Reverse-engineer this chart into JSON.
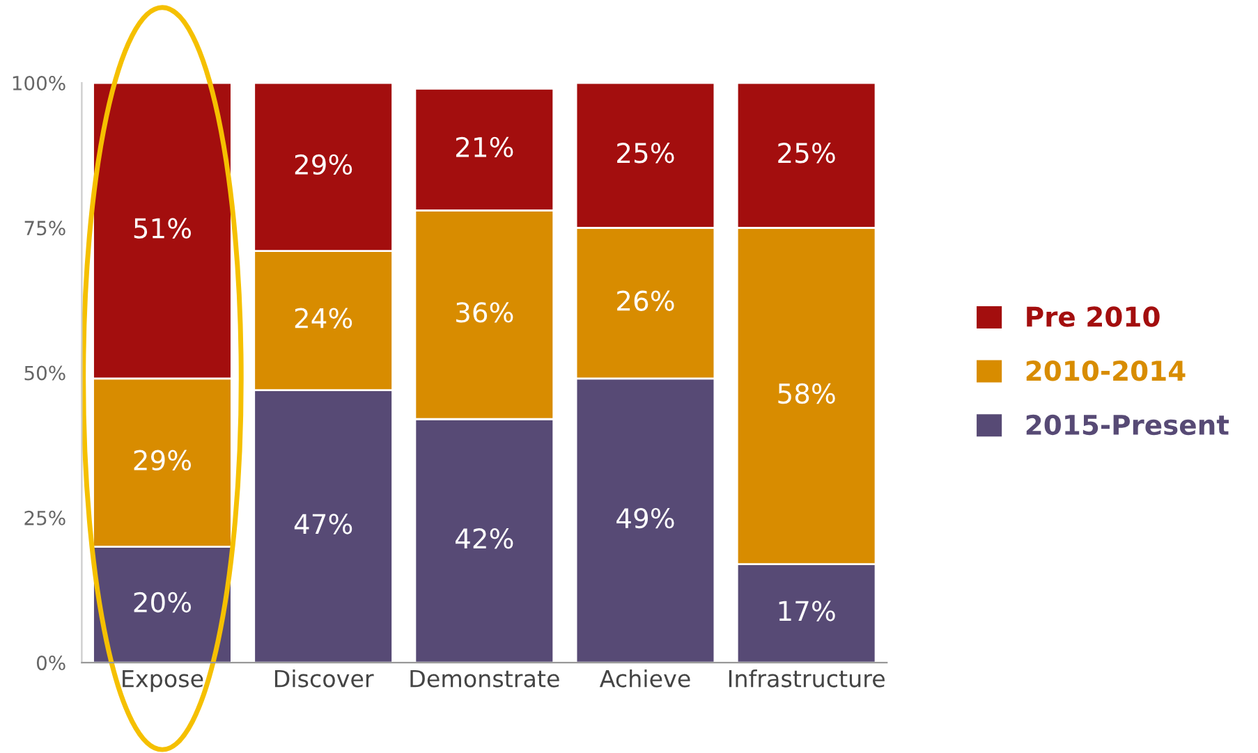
{
  "chart_data": {
    "type": "bar",
    "stacked": true,
    "categories": [
      "Expose",
      "Discover",
      "Demonstrate",
      "Achieve",
      "Infrastructure"
    ],
    "series": [
      {
        "name": "2015-Present",
        "color": "#574a75",
        "values": [
          20,
          47,
          42,
          49,
          17
        ],
        "value_labels": [
          "20%",
          "47%",
          "42%",
          "49%",
          "17%"
        ]
      },
      {
        "name": "2010-2014",
        "color": "#d88c00",
        "values": [
          29,
          24,
          36,
          26,
          58
        ],
        "value_labels": [
          "29%",
          "24%",
          "36%",
          "26%",
          "58%"
        ]
      },
      {
        "name": "Pre 2010",
        "color": "#a30e0e",
        "values": [
          51,
          29,
          21,
          25,
          25
        ],
        "value_labels": [
          "51%",
          "29%",
          "21%",
          "25%",
          "25%"
        ]
      }
    ],
    "ylim": [
      0,
      100
    ],
    "yticks": [
      {
        "value": 0,
        "label": "0%"
      },
      {
        "value": 25,
        "label": "25%"
      },
      {
        "value": 50,
        "label": "50%"
      },
      {
        "value": 75,
        "label": "75%"
      },
      {
        "value": 100,
        "label": "100%"
      }
    ],
    "grid": false,
    "legend": "right"
  }
}
